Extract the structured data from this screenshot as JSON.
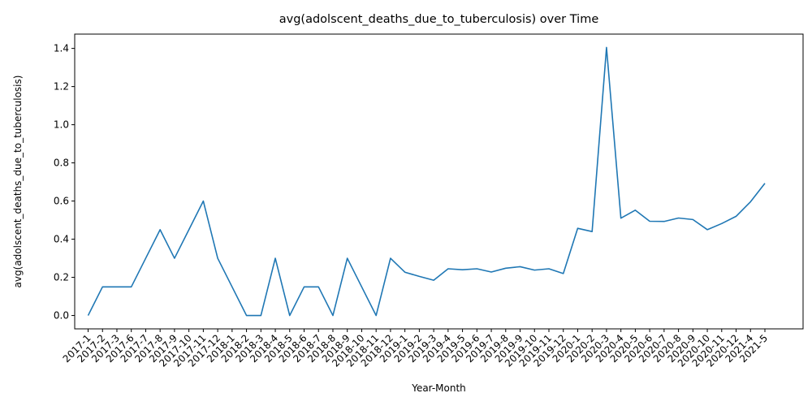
{
  "chart_data": {
    "type": "line",
    "title": "avg(adolscent_deaths_due_to_tuberculosis) over Time",
    "xlabel": "Year-Month",
    "ylabel": "avg(adolscent_deaths_due_to_tuberculosis)",
    "ylim": [
      -0.07,
      1.475
    ],
    "yticks": [
      0.0,
      0.2,
      0.4,
      0.6,
      0.8,
      1.0,
      1.2,
      1.4
    ],
    "ytick_labels": [
      "0.0",
      "0.2",
      "0.4",
      "0.6",
      "0.8",
      "1.0",
      "1.2",
      "1.4"
    ],
    "grid": false,
    "line_color": "#1f77b4",
    "categories": [
      "2017-1",
      "2017-2",
      "2017-3",
      "2017-6",
      "2017-7",
      "2017-8",
      "2017-9",
      "2017-10",
      "2017-11",
      "2017-12",
      "2018-1",
      "2018-2",
      "2018-3",
      "2018-4",
      "2018-5",
      "2018-6",
      "2018-7",
      "2018-8",
      "2018-9",
      "2018-10",
      "2018-11",
      "2018-12",
      "2019-1",
      "2019-2",
      "2019-3",
      "2019-4",
      "2019-5",
      "2019-6",
      "2019-7",
      "2019-8",
      "2019-9",
      "2019-10",
      "2019-11",
      "2019-12",
      "2020-1",
      "2020-2",
      "2020-3",
      "2020-4",
      "2020-5",
      "2020-6",
      "2020-7",
      "2020-8",
      "2020-9",
      "2020-10",
      "2020-11",
      "2020-12",
      "2021-4",
      "2021-5"
    ],
    "series": [
      {
        "name": "avg(adolscent_deaths_due_to_tuberculosis)",
        "values": [
          0.0,
          0.15,
          0.15,
          0.15,
          0.3,
          0.45,
          0.3,
          0.45,
          0.6,
          0.3,
          0.15,
          0.0,
          0.0,
          0.3,
          0.0,
          0.15,
          0.15,
          0.0,
          0.3,
          0.15,
          0.0,
          0.3,
          0.227,
          0.205,
          0.185,
          0.245,
          0.24,
          0.245,
          0.228,
          0.248,
          0.256,
          0.238,
          0.245,
          0.22,
          0.457,
          0.44,
          1.405,
          0.51,
          0.552,
          0.494,
          0.493,
          0.511,
          0.503,
          0.45,
          0.482,
          0.52,
          0.596,
          0.693
        ]
      }
    ]
  }
}
